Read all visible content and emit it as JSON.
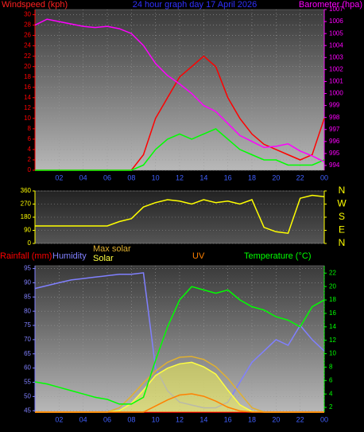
{
  "chart_data": [
    {
      "type": "line",
      "title": "24 hour graph day   17 April 2026",
      "ylabel": "Windspeed (kph)",
      "y2label": "Barometer (hpa)",
      "x": [
        0,
        1,
        2,
        3,
        4,
        5,
        6,
        7,
        8,
        9,
        10,
        11,
        12,
        13,
        14,
        15,
        16,
        17,
        18,
        19,
        20,
        21,
        22,
        23,
        24
      ],
      "xlim": [
        0,
        24
      ],
      "xticks": [
        {
          "value": 2,
          "label": "02"
        },
        {
          "value": 4,
          "label": "04"
        },
        {
          "value": 6,
          "label": "06"
        },
        {
          "value": 8,
          "label": "08"
        },
        10,
        12,
        14,
        16,
        18,
        20,
        22,
        {
          "value": 24,
          "label": "00"
        }
      ],
      "ylim": [
        0,
        31
      ],
      "yticks": [
        0,
        2,
        4,
        6,
        8,
        10,
        12,
        14,
        16,
        18,
        20,
        22,
        24,
        26,
        28,
        30
      ],
      "ycolor": "#ff0000",
      "y2lim": [
        993.6,
        1007
      ],
      "y2ticks": [
        994,
        995,
        996,
        997,
        998,
        999,
        1000,
        1001,
        1002,
        1003,
        1004,
        1005,
        1006,
        1007
      ],
      "y2color": "#ff00ff",
      "grid": true,
      "series": [
        {
          "color": "#ff0000",
          "axis": "y",
          "values": [
            0,
            0,
            0,
            0,
            0,
            0,
            0,
            0,
            0,
            3,
            10,
            14,
            18,
            20,
            22,
            20,
            14,
            10,
            7,
            5,
            4,
            3,
            2,
            3,
            10
          ]
        },
        {
          "color": "#00ff00",
          "axis": "y",
          "values": [
            0,
            0,
            0,
            0,
            0,
            0,
            0,
            0,
            0,
            1,
            4,
            6,
            7,
            6,
            7,
            8,
            6,
            4,
            3,
            2,
            2,
            1,
            1,
            1,
            2
          ]
        },
        {
          "color": "#ff00ff",
          "axis": "y2",
          "values": [
            1005.7,
            1006.2,
            1006.0,
            1005.8,
            1005.6,
            1005.5,
            1005.6,
            1005.4,
            1005.0,
            1004.0,
            1002.5,
            1001.5,
            1000.8,
            1000.0,
            999.0,
            998.5,
            997.5,
            996.5,
            996.0,
            995.5,
            995.6,
            995.8,
            995.2,
            994.8,
            994.3
          ]
        }
      ]
    },
    {
      "type": "line",
      "x": [
        0,
        1,
        2,
        3,
        4,
        5,
        6,
        7,
        8,
        9,
        10,
        11,
        12,
        13,
        14,
        15,
        16,
        17,
        18,
        19,
        20,
        21,
        22,
        23,
        24
      ],
      "xlim": [
        0,
        24
      ],
      "ylim": [
        0,
        360
      ],
      "yticks": [
        0,
        90,
        180,
        270,
        360
      ],
      "ycolor": "#ffff00",
      "y2lim": [
        0,
        360
      ],
      "y2ticks": [
        {
          "value": 360,
          "label": "N"
        },
        {
          "value": 270,
          "label": "W"
        },
        {
          "value": 180,
          "label": "S"
        },
        {
          "value": 90,
          "label": "E"
        },
        {
          "value": 0,
          "label": "N"
        }
      ],
      "y2color": "#ffff00",
      "grid": true,
      "series": [
        {
          "color": "#ffff00",
          "axis": "y",
          "values": [
            120,
            120,
            120,
            120,
            120,
            120,
            120,
            150,
            170,
            250,
            280,
            300,
            290,
            270,
            300,
            280,
            290,
            270,
            300,
            110,
            80,
            70,
            310,
            330,
            320
          ]
        }
      ]
    },
    {
      "type": "line",
      "x": [
        0,
        1,
        2,
        3,
        4,
        5,
        6,
        7,
        8,
        9,
        10,
        11,
        12,
        13,
        14,
        15,
        16,
        17,
        18,
        19,
        20,
        21,
        22,
        23,
        24
      ],
      "xlim": [
        0,
        24
      ],
      "xticks": [
        {
          "value": 2,
          "label": "02"
        },
        {
          "value": 4,
          "label": "04"
        },
        {
          "value": 6,
          "label": "06"
        },
        {
          "value": 8,
          "label": "08"
        },
        10,
        12,
        14,
        16,
        18,
        20,
        22,
        {
          "value": 24,
          "label": "00"
        }
      ],
      "ylim": [
        44.5,
        96
      ],
      "yticks": [
        45,
        50,
        55,
        60,
        65,
        70,
        75,
        80,
        85,
        90,
        95
      ],
      "ycolor": "#8080ff",
      "y2lim": [
        1.3,
        23.1
      ],
      "y2ticks": [
        2,
        4,
        6,
        8,
        10,
        12,
        14,
        16,
        18,
        20,
        22
      ],
      "y2color": "#00ff00",
      "solarlim": [
        0,
        1000
      ],
      "uvlim": [
        0,
        12
      ],
      "rainlim": [
        0,
        10
      ],
      "grid": true,
      "series": [
        {
          "name": "Rainfall (mm)",
          "color": "#ff0000",
          "axis": "rain",
          "values": [
            0,
            0,
            0,
            0,
            0,
            0,
            0,
            0,
            0,
            0,
            0,
            0,
            0,
            0,
            0,
            0,
            0,
            0,
            0,
            0,
            0,
            0,
            0,
            0,
            0
          ]
        },
        {
          "name": "Humidity",
          "color": "#8080ff",
          "axis": "y",
          "values": [
            88,
            89,
            90,
            91,
            91.5,
            92,
            92.5,
            93,
            93,
            93.5,
            60,
            52,
            48,
            47,
            46,
            46,
            48,
            55,
            62,
            66,
            70,
            68,
            75,
            70,
            66
          ]
        },
        {
          "name": "Max solar",
          "color": "#e0b030",
          "axis": "solar",
          "values": [
            0,
            0,
            0,
            0,
            0,
            0,
            0,
            30,
            110,
            200,
            280,
            340,
            375,
            380,
            360,
            310,
            230,
            130,
            30,
            0,
            0,
            0,
            0,
            0,
            0
          ]
        },
        {
          "name": "Solar",
          "color": "#ffff40",
          "axis": "solar",
          "fill": true,
          "values": [
            0,
            0,
            0,
            0,
            0,
            0,
            0,
            10,
            60,
            150,
            250,
            300,
            330,
            340,
            310,
            260,
            150,
            50,
            5,
            0,
            0,
            0,
            0,
            0,
            0
          ]
        },
        {
          "name": "UV",
          "color": "#ff8000",
          "axis": "uv",
          "values": [
            0,
            0,
            0,
            0,
            0,
            0,
            0,
            0,
            0,
            0,
            0.5,
            1,
            1.4,
            1.5,
            1.3,
            0.9,
            0.4,
            0.1,
            0,
            0,
            0,
            0,
            0,
            0,
            0
          ]
        },
        {
          "name": "Temperature (°C)",
          "color": "#00ff00",
          "axis": "y2",
          "values": [
            5.8,
            5.5,
            5.0,
            4.5,
            4.0,
            3.5,
            3.2,
            2.5,
            2.5,
            3.5,
            9,
            14,
            18,
            20,
            19.5,
            19,
            19.5,
            18,
            17,
            16.5,
            15.5,
            15,
            14,
            17,
            18
          ]
        }
      ]
    }
  ]
}
